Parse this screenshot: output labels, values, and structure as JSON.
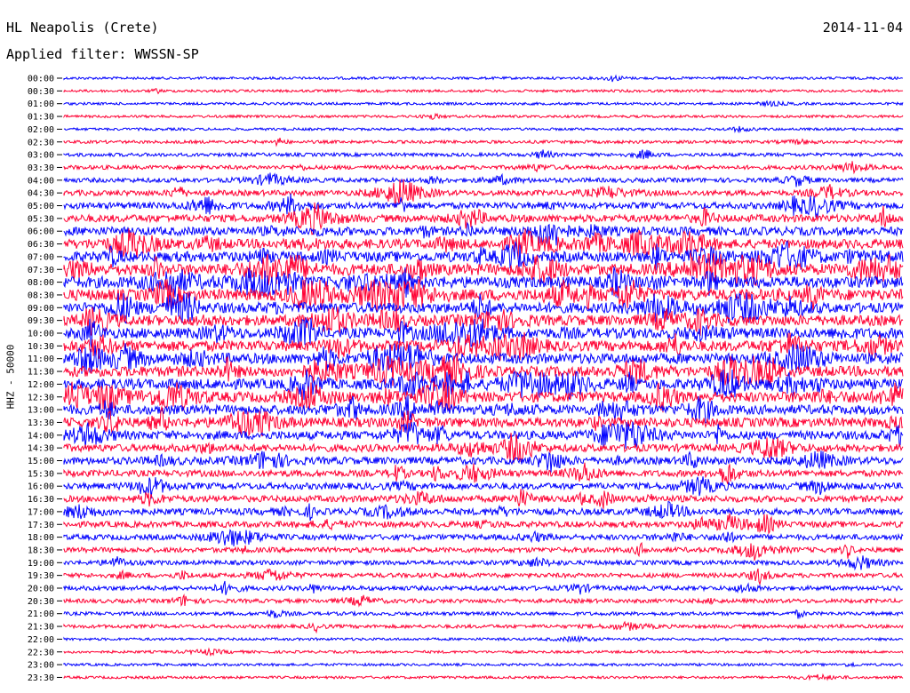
{
  "header": {
    "station": "HL Neapolis (Crete)",
    "date": "2014-11-04",
    "filter_label": "Applied filter:",
    "filter_value": "WWSSN-SP"
  },
  "chart_data": {
    "type": "line",
    "title": "HL Neapolis (Crete)",
    "date": "2014-11-04",
    "filter": "WWSSN-SP",
    "ylabel": "HHZ - 50000",
    "xlabel": "",
    "rows": [
      "00:00",
      "00:30",
      "01:00",
      "01:30",
      "02:00",
      "02:30",
      "03:00",
      "03:30",
      "04:00",
      "04:30",
      "05:00",
      "05:30",
      "06:00",
      "06:30",
      "07:00",
      "07:30",
      "08:00",
      "08:30",
      "09:00",
      "09:30",
      "10:00",
      "10:30",
      "11:00",
      "11:30",
      "12:00",
      "12:30",
      "13:00",
      "13:30",
      "14:00",
      "14:30",
      "15:00",
      "15:30",
      "16:00",
      "16:30",
      "17:00",
      "17:30",
      "18:00",
      "18:30",
      "19:00",
      "19:30",
      "20:00",
      "20:30",
      "21:00",
      "21:30",
      "22:00",
      "22:30",
      "23:00",
      "23:30"
    ],
    "amplitude": [
      1,
      1,
      1,
      1,
      1,
      1.5,
      2,
      2.5,
      3,
      4,
      5,
      6,
      7,
      8,
      9,
      10,
      10,
      10,
      9,
      9,
      9,
      9,
      9,
      9,
      9,
      9,
      8,
      8,
      7,
      6,
      6,
      5,
      5,
      5,
      5,
      4.5,
      4,
      3.5,
      3,
      3,
      3,
      2.5,
      2,
      2,
      1,
      1,
      1,
      1
    ],
    "colors": [
      "#0000ff",
      "#ff0033"
    ]
  }
}
